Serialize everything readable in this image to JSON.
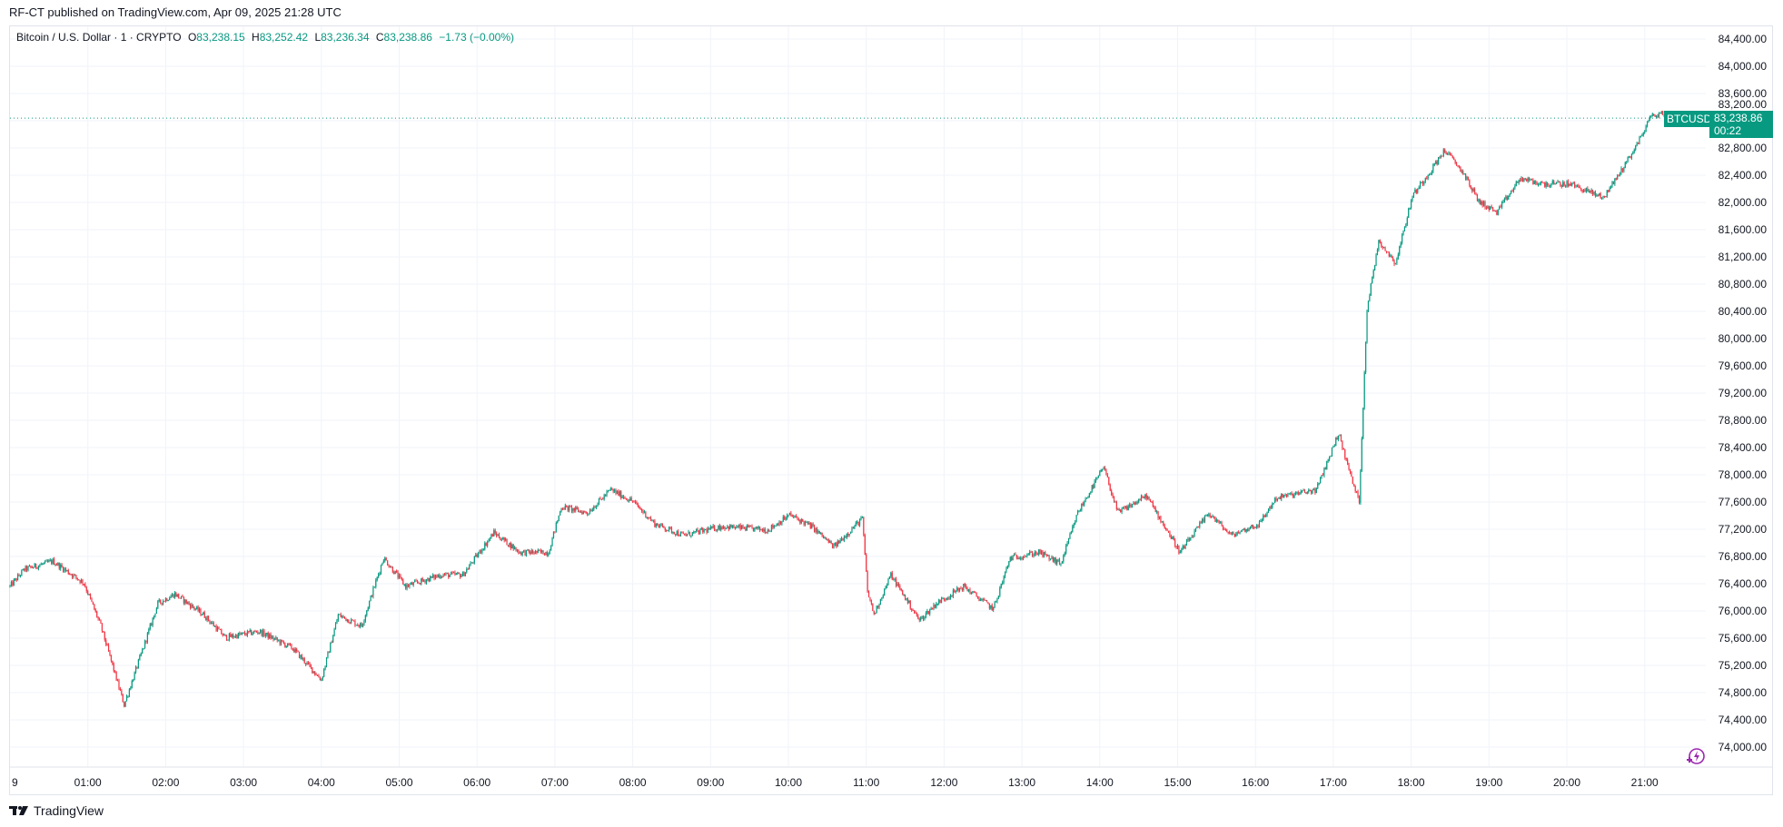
{
  "header": {
    "published": "RF-CT published on TradingView.com, Apr 09, 2025 21:28 UTC"
  },
  "legend": {
    "symbol": "Bitcoin / U.S. Dollar · 1 · CRYPTO",
    "o_label": "O",
    "o": "83,238.15",
    "h_label": "H",
    "h": "83,252.42",
    "l_label": "L",
    "l": "83,236.34",
    "c_label": "C",
    "c": "83,238.86",
    "change": "−1.73 (−0.00%)"
  },
  "last_price": {
    "symbol": "BTCUSD",
    "price": "83,238.86",
    "countdown": "00:22"
  },
  "footer": {
    "logo_text": "TradingView"
  },
  "colors": {
    "up": "#089981",
    "down": "#F23645",
    "grid": "#f0f3fa",
    "price_line": "#089981",
    "bolt": "#9c27b0"
  },
  "icons": [
    "tradingview-logo-icon",
    "lightning-icon"
  ],
  "chart_data": {
    "type": "candlestick",
    "interval": "1 minute",
    "symbol": "BTCUSD",
    "ylim": [
      73800,
      84600
    ],
    "y_ticks": [
      "74,000.00",
      "74,400.00",
      "74,800.00",
      "75,200.00",
      "75,600.00",
      "76,000.00",
      "76,400.00",
      "76,800.00",
      "77,200.00",
      "77,600.00",
      "78,000.00",
      "78,400.00",
      "78,800.00",
      "79,200.00",
      "79,600.00",
      "80,000.00",
      "80,400.00",
      "80,800.00",
      "81,200.00",
      "81,600.00",
      "82,000.00",
      "82,400.00",
      "82,800.00",
      "83,200.00",
      "83,600.00",
      "84,000.00",
      "84,400.00"
    ],
    "x_ticks": [
      "9",
      "01:00",
      "02:00",
      "03:00",
      "04:00",
      "05:00",
      "06:00",
      "07:00",
      "08:00",
      "09:00",
      "10:00",
      "11:00",
      "12:00",
      "13:00",
      "14:00",
      "15:00",
      "16:00",
      "17:00",
      "18:00",
      "19:00",
      "20:00",
      "21:00"
    ],
    "last_close": 83238.86,
    "approx_price_path": [
      [
        "00:00",
        76360
      ],
      [
        "00:11",
        76610
      ],
      [
        "00:33",
        76730
      ],
      [
        "00:57",
        76410
      ],
      [
        "01:10",
        75780
      ],
      [
        "01:28",
        74620
      ],
      [
        "01:41",
        75360
      ],
      [
        "01:54",
        76110
      ],
      [
        "02:07",
        76250
      ],
      [
        "02:29",
        75950
      ],
      [
        "02:46",
        75610
      ],
      [
        "03:12",
        75700
      ],
      [
        "03:38",
        75450
      ],
      [
        "04:00",
        74990
      ],
      [
        "04:13",
        75940
      ],
      [
        "04:31",
        75780
      ],
      [
        "04:48",
        76780
      ],
      [
        "05:05",
        76360
      ],
      [
        "05:32",
        76530
      ],
      [
        "05:49",
        76530
      ],
      [
        "06:13",
        77150
      ],
      [
        "06:33",
        76860
      ],
      [
        "06:55",
        76860
      ],
      [
        "07:05",
        77530
      ],
      [
        "07:25",
        77440
      ],
      [
        "07:43",
        77780
      ],
      [
        "08:00",
        77610
      ],
      [
        "08:17",
        77280
      ],
      [
        "08:39",
        77110
      ],
      [
        "09:09",
        77240
      ],
      [
        "09:44",
        77190
      ],
      [
        "10:01",
        77410
      ],
      [
        "10:18",
        77240
      ],
      [
        "10:35",
        76940
      ],
      [
        "10:57",
        77360
      ],
      [
        "11:01",
        76280
      ],
      [
        "11:06",
        75950
      ],
      [
        "11:19",
        76530
      ],
      [
        "11:41",
        75860
      ],
      [
        "11:54",
        76110
      ],
      [
        "12:15",
        76360
      ],
      [
        "12:38",
        76030
      ],
      [
        "12:51",
        76780
      ],
      [
        "13:13",
        76860
      ],
      [
        "13:30",
        76690
      ],
      [
        "13:43",
        77440
      ],
      [
        "14:03",
        78110
      ],
      [
        "14:14",
        77440
      ],
      [
        "14:36",
        77690
      ],
      [
        "15:02",
        76860
      ],
      [
        "15:24",
        77440
      ],
      [
        "15:41",
        77110
      ],
      [
        "16:03",
        77280
      ],
      [
        "16:16",
        77660
      ],
      [
        "16:47",
        77780
      ],
      [
        "17:04",
        78610
      ],
      [
        "17:15",
        77880
      ],
      [
        "17:20",
        77610
      ],
      [
        "17:26",
        80440
      ],
      [
        "17:35",
        81440
      ],
      [
        "17:48",
        81110
      ],
      [
        "18:01",
        82100
      ],
      [
        "18:14",
        82440
      ],
      [
        "18:26",
        82770
      ],
      [
        "18:40",
        82440
      ],
      [
        "18:52",
        82020
      ],
      [
        "19:06",
        81850
      ],
      [
        "19:24",
        82350
      ],
      [
        "19:41",
        82270
      ],
      [
        "20:03",
        82270
      ],
      [
        "20:28",
        82070
      ],
      [
        "20:41",
        82440
      ],
      [
        "20:54",
        82850
      ],
      [
        "21:05",
        83270
      ],
      [
        "21:13",
        83300
      ],
      [
        "21:28",
        83238.86
      ]
    ]
  }
}
